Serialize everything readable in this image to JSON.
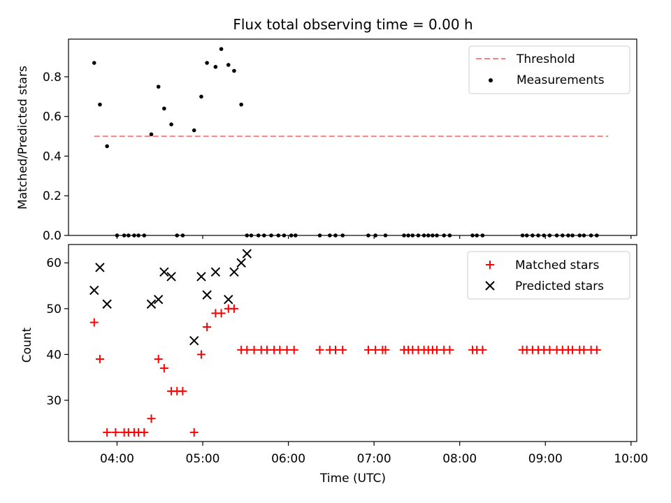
{
  "chart_data": [
    {
      "type": "scatter",
      "title": "Flux total observing time = 0.00 h",
      "xlabel": "",
      "ylabel": "Matched/Predicted stars",
      "xlim": [
        "03:26",
        "10:04"
      ],
      "ylim": [
        0,
        0.99
      ],
      "yticks": [
        0.0,
        0.2,
        0.4,
        0.6,
        0.8
      ],
      "ytick_labels": [
        "0.0",
        "0.2",
        "0.4",
        "0.6",
        "0.8"
      ],
      "grid": false,
      "legend_position": "top-right",
      "legend": [
        "Threshold",
        "Measurements"
      ],
      "threshold": {
        "name": "Threshold",
        "y": 0.5,
        "x_range": [
          "03:44",
          "09:44"
        ],
        "color": "#ff7f7f",
        "style": "dashed"
      },
      "series": [
        {
          "name": "Measurements",
          "color": "#000000",
          "marker": "dot",
          "x": [
            "03:44",
            "03:48",
            "03:53",
            "04:00",
            "04:05",
            "04:08",
            "04:12",
            "04:15",
            "04:19",
            "04:24",
            "04:29",
            "04:33",
            "04:38",
            "04:42",
            "04:46",
            "04:54",
            "04:59",
            "05:03",
            "05:09",
            "05:13",
            "05:18",
            "05:22",
            "05:27",
            "05:31",
            "05:34",
            "05:39",
            "05:43",
            "05:48",
            "05:53",
            "05:57",
            "06:02",
            "06:05",
            "06:22",
            "06:29",
            "06:33",
            "06:38",
            "06:56",
            "07:01",
            "07:08",
            "07:21",
            "07:24",
            "07:27",
            "07:31",
            "07:35",
            "07:38",
            "07:41",
            "07:44",
            "07:49",
            "07:53",
            "08:09",
            "08:12",
            "08:16",
            "08:44",
            "08:47",
            "08:51",
            "08:55",
            "08:59",
            "09:03",
            "09:08",
            "09:12",
            "09:16",
            "09:19",
            "09:24",
            "09:27",
            "09:32",
            "09:36"
          ],
          "y": [
            0.87,
            0.66,
            0.45,
            0,
            0,
            0,
            0,
            0,
            0,
            0.51,
            0.75,
            0.64,
            0.56,
            0,
            0,
            0.53,
            0.7,
            0.87,
            0.85,
            0.94,
            0.86,
            0.83,
            0.66,
            0,
            0,
            0,
            0,
            0,
            0,
            0,
            0,
            0,
            0,
            0,
            0,
            0,
            0,
            0,
            0,
            0,
            0,
            0,
            0,
            0,
            0,
            0,
            0,
            0,
            0,
            0,
            0,
            0,
            0,
            0,
            0,
            0,
            0,
            0,
            0,
            0,
            0,
            0,
            0,
            0,
            0,
            0
          ]
        }
      ]
    },
    {
      "type": "scatter",
      "title": "",
      "xlabel": "Time (UTC)",
      "ylabel": "Count",
      "xlim": [
        "03:26",
        "10:04"
      ],
      "xticks": [
        "04:00",
        "05:00",
        "06:00",
        "07:00",
        "08:00",
        "09:00",
        "10:00"
      ],
      "ylim": [
        21,
        64
      ],
      "yticks": [
        30,
        40,
        50,
        60
      ],
      "grid": false,
      "legend_position": "top-right",
      "legend": [
        "Matched stars",
        "Predicted stars"
      ],
      "series": [
        {
          "name": "Matched stars",
          "color": "#ff0000",
          "marker": "plus",
          "x": [
            "03:44",
            "03:48",
            "03:53",
            "03:59",
            "04:05",
            "04:08",
            "04:12",
            "04:15",
            "04:19",
            "04:24",
            "04:29",
            "04:33",
            "04:38",
            "04:42",
            "04:46",
            "04:54",
            "04:59",
            "05:03",
            "05:09",
            "05:13",
            "05:18",
            "05:22",
            "05:27",
            "05:31",
            "05:36",
            "05:41",
            "05:45",
            "05:50",
            "05:54",
            "05:59",
            "06:04",
            "06:22",
            "06:29",
            "06:33",
            "06:38",
            "06:56",
            "07:01",
            "07:06",
            "07:08",
            "07:21",
            "07:24",
            "07:27",
            "07:31",
            "07:35",
            "07:38",
            "07:41",
            "07:44",
            "07:49",
            "07:53",
            "08:09",
            "08:12",
            "08:16",
            "08:44",
            "08:47",
            "08:51",
            "08:55",
            "08:59",
            "09:03",
            "09:08",
            "09:12",
            "09:16",
            "09:19",
            "09:24",
            "09:27",
            "09:32",
            "09:36"
          ],
          "y": [
            47,
            39,
            23,
            23,
            23,
            23,
            23,
            23,
            23,
            26,
            39,
            37,
            32,
            32,
            32,
            23,
            40,
            46,
            49,
            49,
            50,
            50,
            41,
            41,
            41,
            41,
            41,
            41,
            41,
            41,
            41,
            41,
            41,
            41,
            41,
            41,
            41,
            41,
            41,
            41,
            41,
            41,
            41,
            41,
            41,
            41,
            41,
            41,
            41,
            41,
            41,
            41,
            41,
            41,
            41,
            41,
            41,
            41,
            41,
            41,
            41,
            41,
            41,
            41,
            41,
            41
          ]
        },
        {
          "name": "Predicted stars",
          "color": "#000000",
          "marker": "x",
          "x": [
            "03:44",
            "03:48",
            "03:53",
            "04:24",
            "04:29",
            "04:33",
            "04:38",
            "04:54",
            "04:59",
            "05:03",
            "05:09",
            "05:18",
            "05:22",
            "05:27",
            "05:31"
          ],
          "y": [
            54,
            59,
            51,
            51,
            52,
            58,
            57,
            43,
            57,
            53,
            58,
            52,
            58,
            60,
            62
          ]
        }
      ]
    }
  ]
}
